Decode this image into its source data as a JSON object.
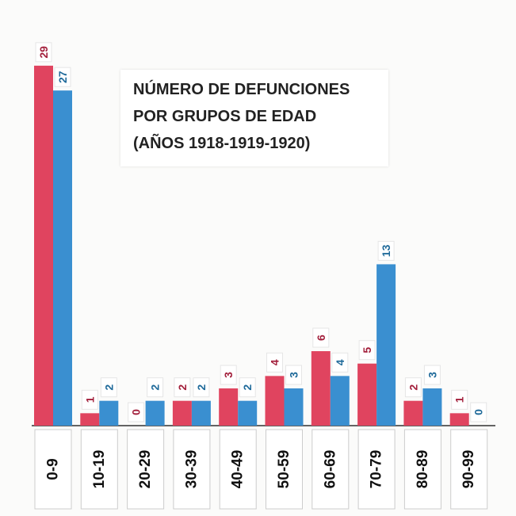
{
  "chart_data": {
    "type": "bar",
    "title": "NÚMERO DE DEFUNCIONES POR GRUPOS DE EDAD (AÑOS 1918-1919-1920)",
    "title_lines": [
      "NÚMERO DE DEFUNCIONES",
      "POR GRUPOS DE EDAD",
      "(AÑOS 1918-1919-1920)"
    ],
    "xlabel": "",
    "ylabel": "",
    "ylim": [
      0,
      29
    ],
    "grid": false,
    "legend": "none",
    "categories": [
      "0-9",
      "10-19",
      "20-29",
      "30-39",
      "40-49",
      "50-59",
      "60-69",
      "70-79",
      "80-89",
      "90-99"
    ],
    "series": [
      {
        "name": "serie-roja",
        "color": "#e0445f",
        "label_color": "#a3203c",
        "values": [
          29,
          1,
          0,
          2,
          3,
          4,
          6,
          5,
          2,
          1
        ]
      },
      {
        "name": "serie-azul",
        "color": "#3a8fd0",
        "label_color": "#1f6a9a",
        "values": [
          27,
          2,
          2,
          2,
          2,
          3,
          4,
          13,
          3,
          0
        ]
      }
    ]
  }
}
